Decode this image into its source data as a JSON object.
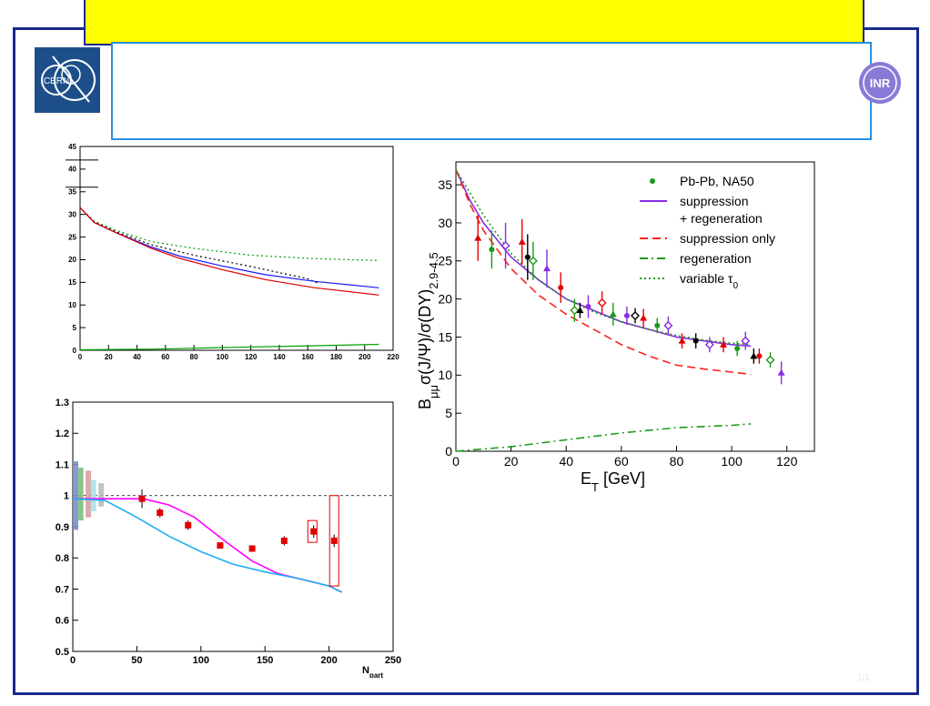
{
  "page": {
    "page_number": "1/1",
    "colors": {
      "frame": "#1a2a8c",
      "banner": "#ffff00",
      "title_box": "#2a8fe0",
      "logo_bg": "#1c4f8a"
    },
    "logos": {
      "left": "CERN",
      "right": "INR"
    }
  },
  "chart_data": [
    {
      "type": "line",
      "xlim": [
        0,
        220
      ],
      "ylim": [
        0,
        45
      ],
      "xticks": [
        "0",
        "20",
        "40",
        "60",
        "80",
        "100",
        "120",
        "140",
        "160",
        "180",
        "200",
        "220"
      ],
      "yticks": [
        "0",
        "5",
        "10",
        "15",
        "20",
        "25",
        "30",
        "35",
        "40",
        "45"
      ],
      "grid": false,
      "series": [
        {
          "color": "#00a000",
          "style": "dotted",
          "points": [
            [
              0,
              31.5
            ],
            [
              10,
              28.5
            ],
            [
              25,
              26.5
            ],
            [
              50,
              24
            ],
            [
              80,
              22.5
            ],
            [
              120,
              21
            ],
            [
              160,
              20.3
            ],
            [
              210,
              19.8
            ]
          ]
        },
        {
          "color": "#000000",
          "style": "dotted",
          "points": [
            [
              0,
              31.5
            ],
            [
              10,
              28.3
            ],
            [
              25,
              26.2
            ],
            [
              50,
              23.3
            ],
            [
              80,
              21
            ],
            [
              120,
              18.5
            ],
            [
              160,
              15.8
            ],
            [
              168,
              14.7
            ]
          ]
        },
        {
          "color": "#1a1aff",
          "style": "solid",
          "points": [
            [
              0,
              31.5
            ],
            [
              10,
              28.2
            ],
            [
              25,
              26
            ],
            [
              50,
              22.8
            ],
            [
              70,
              20.8
            ],
            [
              100,
              18.6
            ],
            [
              130,
              16.7
            ],
            [
              165,
              15.2
            ],
            [
              210,
              13.8
            ]
          ]
        },
        {
          "color": "#e00000",
          "style": "solid",
          "points": [
            [
              0,
              31.5
            ],
            [
              10,
              28.2
            ],
            [
              25,
              26
            ],
            [
              50,
              22.5
            ],
            [
              70,
              20.3
            ],
            [
              100,
              17.8
            ],
            [
              130,
              15.6
            ],
            [
              165,
              13.8
            ],
            [
              210,
              12.2
            ]
          ]
        },
        {
          "color": "#00a000",
          "style": "solid",
          "points": [
            [
              0,
              0.1
            ],
            [
              50,
              0.25
            ],
            [
              100,
              0.6
            ],
            [
              150,
              0.9
            ],
            [
              210,
              1.3
            ]
          ]
        }
      ]
    },
    {
      "type": "line",
      "xlim": [
        0,
        130
      ],
      "ylim": [
        0,
        38
      ],
      "xticks": [
        "0",
        "20",
        "40",
        "60",
        "80",
        "100",
        "120"
      ],
      "yticks": [
        "0",
        "5",
        "10",
        "15",
        "20",
        "25",
        "30",
        "35"
      ],
      "xlabel": "E",
      "xlabel_sub": "T",
      "xlabel_unit": " [GeV]",
      "ylabel_parts": {
        "b": "B",
        "b_sub": "μμ",
        "expr": "σ(J/Ψ)/σ(DY)",
        "range": "2.9-4.5"
      },
      "legend": {
        "position": "top-right",
        "entries": [
          {
            "label": "Pb-Pb, NA50",
            "color": "#1a9a1a",
            "style": "marker"
          },
          {
            "label": "suppression",
            "label2": "+ regeneration",
            "color": "#8a2be2",
            "style": "solid"
          },
          {
            "label": "suppression only",
            "color": "#ff2020",
            "style": "dashed"
          },
          {
            "label": "regeneration",
            "color": "#1a9a1a",
            "style": "dashdot"
          },
          {
            "label": "variable τ",
            "label_sub": "0",
            "color": "#1a9a1a",
            "style": "dotted"
          }
        ]
      },
      "series": [
        {
          "name": "suppression + regeneration",
          "color": "#8a2be2",
          "style": "solid",
          "points": [
            [
              0,
              37
            ],
            [
              5,
              33
            ],
            [
              10,
              30
            ],
            [
              20,
              25.5
            ],
            [
              30,
              22.5
            ],
            [
              40,
              20
            ],
            [
              50,
              18.5
            ],
            [
              60,
              17
            ],
            [
              70,
              16
            ],
            [
              80,
              15
            ],
            [
              90,
              14.5
            ],
            [
              100,
              14
            ],
            [
              107,
              13.8
            ]
          ]
        },
        {
          "name": "suppression only",
          "color": "#ff2020",
          "style": "dashed",
          "points": [
            [
              0,
              37
            ],
            [
              5,
              32.5
            ],
            [
              10,
              29
            ],
            [
              20,
              24
            ],
            [
              30,
              20.5
            ],
            [
              40,
              18
            ],
            [
              50,
              16
            ],
            [
              60,
              14
            ],
            [
              70,
              12.5
            ],
            [
              80,
              11.3
            ],
            [
              90,
              10.8
            ],
            [
              100,
              10.4
            ],
            [
              107,
              10.1
            ]
          ]
        },
        {
          "name": "regeneration",
          "color": "#1a9a1a",
          "style": "dashdot",
          "points": [
            [
              0,
              0
            ],
            [
              20,
              0.6
            ],
            [
              40,
              1.5
            ],
            [
              60,
              2.4
            ],
            [
              80,
              3.1
            ],
            [
              100,
              3.4
            ],
            [
              107,
              3.6
            ]
          ]
        },
        {
          "name": "variable τ0",
          "color": "#1a9a1a",
          "style": "dotted",
          "points": [
            [
              0,
              37
            ],
            [
              10,
              31
            ],
            [
              20,
              26
            ],
            [
              30,
              22.5
            ],
            [
              40,
              20
            ],
            [
              50,
              18.3
            ],
            [
              60,
              17
            ],
            [
              70,
              16
            ],
            [
              80,
              15.2
            ],
            [
              90,
              14.6
            ],
            [
              100,
              14.2
            ],
            [
              107,
              14
            ]
          ]
        },
        {
          "name": "Pb-Pb, NA50",
          "type": "scatter",
          "points": [
            [
              8,
              28,
              "#e00000",
              3
            ],
            [
              13,
              26.5,
              "#1a9a1a",
              2.5
            ],
            [
              18,
              27,
              "#8a2be2",
              3
            ],
            [
              24,
              27.5,
              "#e00000",
              3
            ],
            [
              26,
              25.5,
              "#000000",
              3
            ],
            [
              28,
              25,
              "#1a9a1a",
              2.5
            ],
            [
              33,
              24,
              "#8a2be2",
              2.5
            ],
            [
              38,
              21.5,
              "#e00000",
              2
            ],
            [
              43,
              18.5,
              "#1a9a1a",
              1.5
            ],
            [
              45,
              18.5,
              "#000000",
              1
            ],
            [
              48,
              19,
              "#8a2be2",
              1.5
            ],
            [
              53,
              19.5,
              "#e00000",
              1.5
            ],
            [
              57,
              18,
              "#1a9a1a",
              1.5
            ],
            [
              62,
              17.8,
              "#8a2be2",
              1.2
            ],
            [
              65,
              17.8,
              "#000000",
              1
            ],
            [
              68,
              17.5,
              "#e00000",
              1.2
            ],
            [
              73,
              16.5,
              "#1a9a1a",
              1
            ],
            [
              77,
              16.5,
              "#8a2be2",
              1.2
            ],
            [
              82,
              14.5,
              "#e00000",
              1
            ],
            [
              87,
              14.5,
              "#000000",
              1
            ],
            [
              92,
              14,
              "#8a2be2",
              1
            ],
            [
              97,
              14,
              "#e00000",
              1
            ],
            [
              102,
              13.5,
              "#1a9a1a",
              1
            ],
            [
              105,
              14.5,
              "#8a2be2",
              1.2
            ],
            [
              108,
              12.5,
              "#000000",
              1
            ],
            [
              110,
              12.5,
              "#e00000",
              1
            ],
            [
              114,
              12,
              "#1a9a1a",
              1
            ],
            [
              118,
              10.3,
              "#8a2be2",
              1.5
            ]
          ]
        }
      ]
    },
    {
      "type": "line",
      "xlim": [
        0,
        250
      ],
      "ylim": [
        0.5,
        1.3
      ],
      "xticks": [
        "0",
        "50",
        "100",
        "150",
        "200",
        "250"
      ],
      "yticks": [
        "0.5",
        "0.6",
        "0.7",
        "0.8",
        "0.9",
        "1",
        "1.1",
        "1.2",
        "1.3"
      ],
      "xlabel": "N",
      "xlabel_sub": "part",
      "reference_line": 1.0,
      "series": [
        {
          "color": "#ff00ff",
          "style": "solid",
          "points": [
            [
              0,
              0.99
            ],
            [
              30,
              0.99
            ],
            [
              55,
              0.99
            ],
            [
              75,
              0.97
            ],
            [
              95,
              0.93
            ],
            [
              120,
              0.85
            ],
            [
              140,
              0.79
            ],
            [
              160,
              0.75
            ],
            [
              180,
              0.73
            ],
            [
              200,
              0.71
            ],
            [
              210,
              0.69
            ]
          ]
        },
        {
          "color": "#1eaef0",
          "style": "solid",
          "points": [
            [
              0,
              0.99
            ],
            [
              25,
              0.985
            ],
            [
              50,
              0.93
            ],
            [
              75,
              0.87
            ],
            [
              100,
              0.82
            ],
            [
              125,
              0.78
            ],
            [
              150,
              0.755
            ],
            [
              175,
              0.735
            ],
            [
              200,
              0.71
            ],
            [
              210,
              0.69
            ]
          ]
        },
        {
          "type": "scatter",
          "color": "#e00000",
          "points": [
            [
              54,
              0.99,
              0.03
            ],
            [
              68,
              0.945,
              0.015
            ],
            [
              90,
              0.905,
              0.015
            ],
            [
              115,
              0.84,
              0.01
            ],
            [
              140,
              0.83,
              0.01
            ],
            [
              165,
              0.855,
              0.015
            ],
            [
              188,
              0.885,
              0.02
            ],
            [
              204,
              0.855,
              0.02
            ]
          ]
        }
      ]
    }
  ]
}
